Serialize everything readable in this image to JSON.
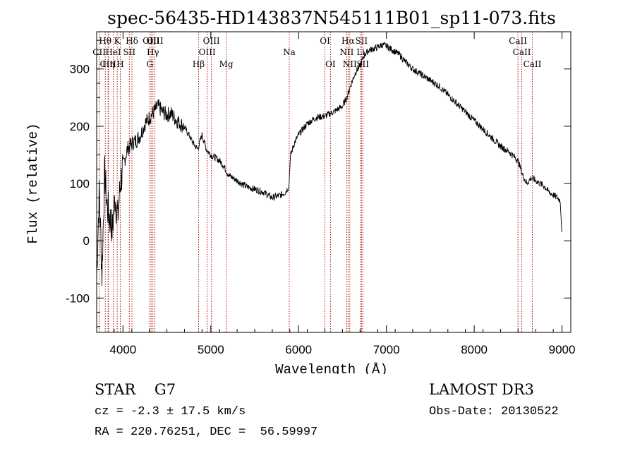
{
  "chart_data": {
    "type": "line",
    "title": "spec-56435-HD143837N545111B01_sp11-073.fits",
    "xlabel": "Wavelength (Å)",
    "ylabel": "Flux (relative)",
    "xlim": [
      3700,
      9100
    ],
    "ylim": [
      -160,
      365
    ],
    "xticks": [
      4000,
      5000,
      6000,
      7000,
      8000,
      9000
    ],
    "yticks": [
      -100,
      0,
      100,
      200,
      300
    ],
    "colors": {
      "line": "#000000",
      "marker": "#aa0000",
      "axes": "#000000"
    },
    "series": [
      {
        "name": "flux",
        "x": [
          3700,
          3730,
          3760,
          3790,
          3820,
          3850,
          3880,
          3910,
          3940,
          3970,
          4000,
          4050,
          4100,
          4150,
          4200,
          4250,
          4300,
          4350,
          4400,
          4450,
          4500,
          4550,
          4600,
          4650,
          4700,
          4750,
          4800,
          4850,
          4900,
          4950,
          5000,
          5050,
          5100,
          5150,
          5200,
          5300,
          5400,
          5500,
          5600,
          5700,
          5800,
          5850,
          5890,
          5900,
          5910,
          5950,
          6000,
          6100,
          6200,
          6300,
          6400,
          6500,
          6550,
          6600,
          6650,
          6700,
          6750,
          6800,
          6850,
          6900,
          6950,
          7000,
          7050,
          7100,
          7150,
          7200,
          7300,
          7400,
          7500,
          7600,
          7700,
          7800,
          7900,
          8000,
          8100,
          8200,
          8300,
          8400,
          8500,
          8550,
          8600,
          8650,
          8700,
          8750,
          8800,
          8850,
          8900,
          8950,
          8980,
          9000
        ],
        "y": [
          -60,
          90,
          -60,
          120,
          60,
          40,
          20,
          80,
          40,
          100,
          130,
          160,
          170,
          175,
          185,
          205,
          215,
          225,
          235,
          225,
          220,
          222,
          212,
          205,
          198,
          185,
          170,
          160,
          185,
          160,
          150,
          145,
          140,
          130,
          115,
          105,
          95,
          90,
          85,
          75,
          80,
          85,
          95,
          130,
          150,
          170,
          185,
          205,
          215,
          218,
          225,
          235,
          250,
          275,
          295,
          305,
          325,
          333,
          335,
          338,
          342,
          340,
          335,
          330,
          325,
          315,
          300,
          290,
          280,
          270,
          255,
          240,
          225,
          210,
          195,
          180,
          165,
          155,
          140,
          115,
          100,
          110,
          105,
          100,
          95,
          85,
          80,
          75,
          70,
          10
        ]
      }
    ],
    "line_markers": [
      {
        "name": "CII",
        "wavelength": 3729,
        "row": 2
      },
      {
        "name": "Hθ",
        "wavelength": 3798,
        "row": 1
      },
      {
        "name": "CIII",
        "wavelength": 3830,
        "row": 3
      },
      {
        "name": "Hη",
        "wavelength": 3835,
        "row": 3
      },
      {
        "name": "HeI",
        "wavelength": 3889,
        "row": 2
      },
      {
        "name": "K",
        "wavelength": 3934,
        "row": 1
      },
      {
        "name": "H",
        "wavelength": 3969,
        "row": 3
      },
      {
        "name": "SII",
        "wavelength": 4072,
        "row": 2
      },
      {
        "name": "Hδ",
        "wavelength": 4102,
        "row": 1
      },
      {
        "name": "G",
        "wavelength": 4305,
        "row": 3
      },
      {
        "name": "OIII",
        "wavelength": 4320,
        "row": 1
      },
      {
        "name": "Hγ",
        "wavelength": 4341,
        "row": 2
      },
      {
        "name": "OIII",
        "wavelength": 4363,
        "row": 1
      },
      {
        "name": "Hβ",
        "wavelength": 4861,
        "row": 3
      },
      {
        "name": "OIII",
        "wavelength": 4959,
        "row": 2
      },
      {
        "name": "OIII",
        "wavelength": 5007,
        "row": 1
      },
      {
        "name": "Mg",
        "wavelength": 5175,
        "row": 3
      },
      {
        "name": "Na",
        "wavelength": 5893,
        "row": 2
      },
      {
        "name": "OI",
        "wavelength": 6300,
        "row": 1
      },
      {
        "name": "OI",
        "wavelength": 6363,
        "row": 3
      },
      {
        "name": "NII",
        "wavelength": 6548,
        "row": 2
      },
      {
        "name": "Hα",
        "wavelength": 6563,
        "row": 1
      },
      {
        "name": "NII",
        "wavelength": 6583,
        "row": 3
      },
      {
        "name": "Li",
        "wavelength": 6707,
        "row": 2
      },
      {
        "name": "SII",
        "wavelength": 6716,
        "row": 1
      },
      {
        "name": "SII",
        "wavelength": 6731,
        "row": 3
      },
      {
        "name": "CaII",
        "wavelength": 8498,
        "row": 1
      },
      {
        "name": "CaII",
        "wavelength": 8542,
        "row": 2
      },
      {
        "name": "CaII",
        "wavelength": 8662,
        "row": 3
      }
    ]
  },
  "info": {
    "classification": "STAR    G7",
    "survey": "LAMOST DR3",
    "cz": "cz = -2.3 ± 17.5 km/s",
    "obs_date": "Obs-Date: 20130522",
    "radec": "RA = 220.76251, DEC =  56.59997"
  }
}
